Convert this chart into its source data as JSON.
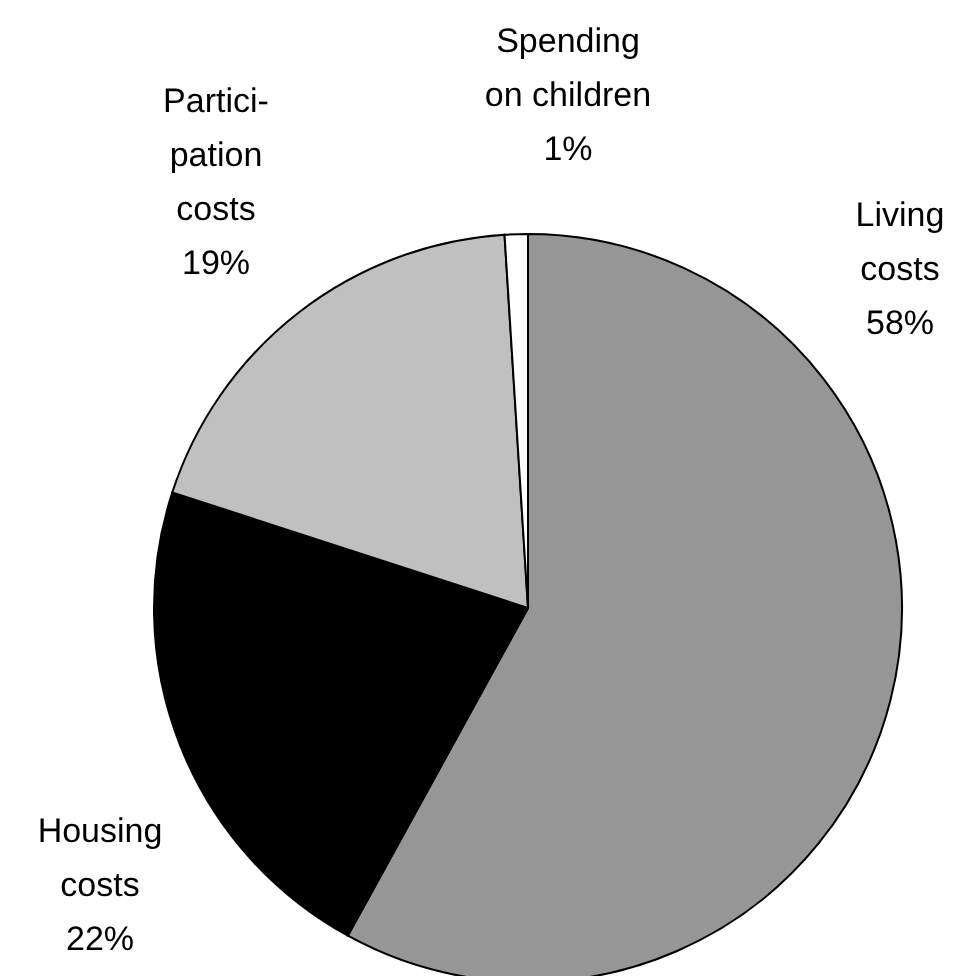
{
  "chart_data": {
    "type": "pie",
    "categories": [
      "Living\ncosts",
      "Housing\ncosts",
      "Partici-\npation\ncosts",
      "Spending\non children"
    ],
    "values": [
      58,
      22,
      19,
      1
    ],
    "colors": [
      "#969696",
      "#000000",
      "#c0c0c0",
      "#ffffff"
    ],
    "value_labels": [
      "58%",
      "22%",
      "19%",
      "1%"
    ],
    "legend": false
  }
}
